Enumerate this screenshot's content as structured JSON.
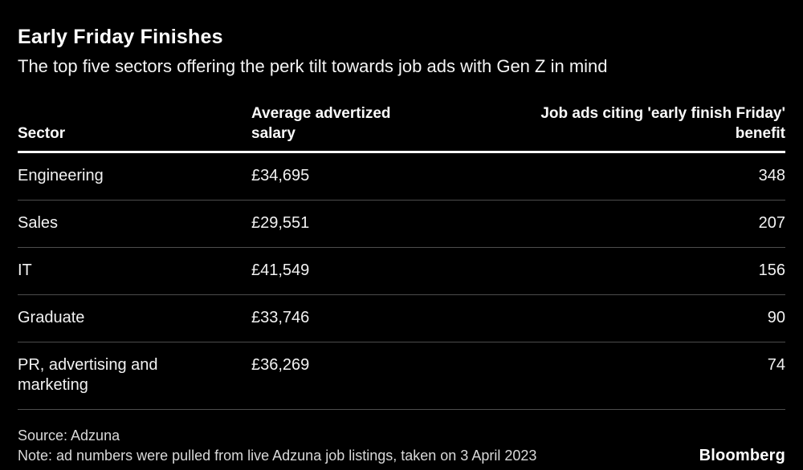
{
  "page": {
    "title": "Early Friday Finishes",
    "subtitle": "The top five sectors offering the perk tilt towards job ads with Gen Z in mind"
  },
  "table": {
    "headers": {
      "sector": "Sector",
      "salary_line1": "Average advertized",
      "salary_line2": "salary",
      "ads_line1": "Job ads citing 'early finish Friday'",
      "ads_line2": "benefit"
    },
    "rows": [
      {
        "sector": "Engineering",
        "salary": "£34,695",
        "ads": "348"
      },
      {
        "sector": "Sales",
        "salary": "£29,551",
        "ads": "207"
      },
      {
        "sector": "IT",
        "salary": "£41,549",
        "ads": "156"
      },
      {
        "sector": "Graduate",
        "salary": "£33,746",
        "ads": "90"
      },
      {
        "sector": "PR, advertising and marketing",
        "salary": "£36,269",
        "ads": "74"
      }
    ]
  },
  "footer": {
    "source": "Source: Adzuna",
    "note": "Note: ad numbers were pulled from live Adzuna job listings, taken on 3 April 2023",
    "brand": "Bloomberg"
  },
  "colors": {
    "background": "#000000",
    "text": "#f2f2f2",
    "header_rule": "#ffffff",
    "row_separator": "#4d4d4d",
    "footer_text": "#d9d9d9"
  },
  "chart_data": {
    "type": "table",
    "title": "Early Friday Finishes",
    "subtitle": "The top five sectors offering the perk tilt towards job ads with Gen Z in mind",
    "columns": [
      "Sector",
      "Average advertized salary",
      "Job ads citing 'early finish Friday' benefit"
    ],
    "rows": [
      [
        "Engineering",
        "£34,695",
        348
      ],
      [
        "Sales",
        "£29,551",
        207
      ],
      [
        "IT",
        "£41,549",
        156
      ],
      [
        "Graduate",
        "£33,746",
        90
      ],
      [
        "PR, advertising and marketing",
        "£36,269",
        74
      ]
    ],
    "source": "Source: Adzuna",
    "note": "Note: ad numbers were pulled from live Adzuna job listings, taken on 3 April 2023",
    "layout": {
      "background": "black",
      "header_rule": "thick white",
      "row_separators": "thin gray",
      "value_column_alignment": "right"
    }
  }
}
